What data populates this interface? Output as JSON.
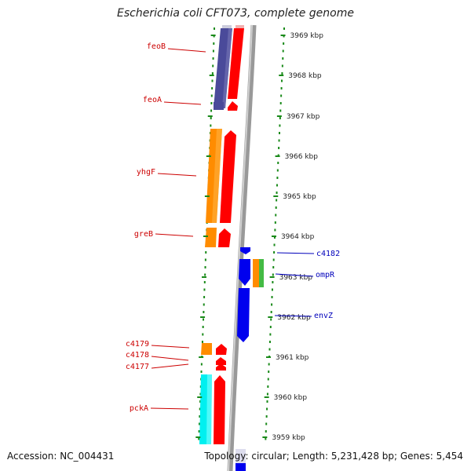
{
  "title": "Escherichia coli CFT073, complete genome",
  "accession": "Accession: NC_004431",
  "summary": "Topology: circular; Length: 5,231,428 bp; Genes: 5,454",
  "colors": {
    "label_left": "#cc0000",
    "label_right": "#0000bb",
    "tick": "#1a8a1a",
    "backbone": "#888888",
    "cds_forward": "#ff0000",
    "cds_reverse": "#0000ee",
    "orange": "#ff8c00",
    "purple": "#4a4a9a",
    "cyan": "#00f0f0",
    "green": "#44bb44"
  },
  "ticks": [
    "3969 kbp",
    "3968 kbp",
    "3967 kbp",
    "3966 kbp",
    "3965 kbp",
    "3964 kbp",
    "3963 kbp",
    "3962 kbp",
    "3961 kbp",
    "3960 kbp",
    "3959 kbp"
  ],
  "left_labels": [
    "feoB",
    "feoA",
    "yhgF",
    "greB",
    "c4179",
    "c4178",
    "c4177",
    "pckA"
  ],
  "right_labels": [
    "c4182",
    "ompR",
    "envZ"
  ]
}
